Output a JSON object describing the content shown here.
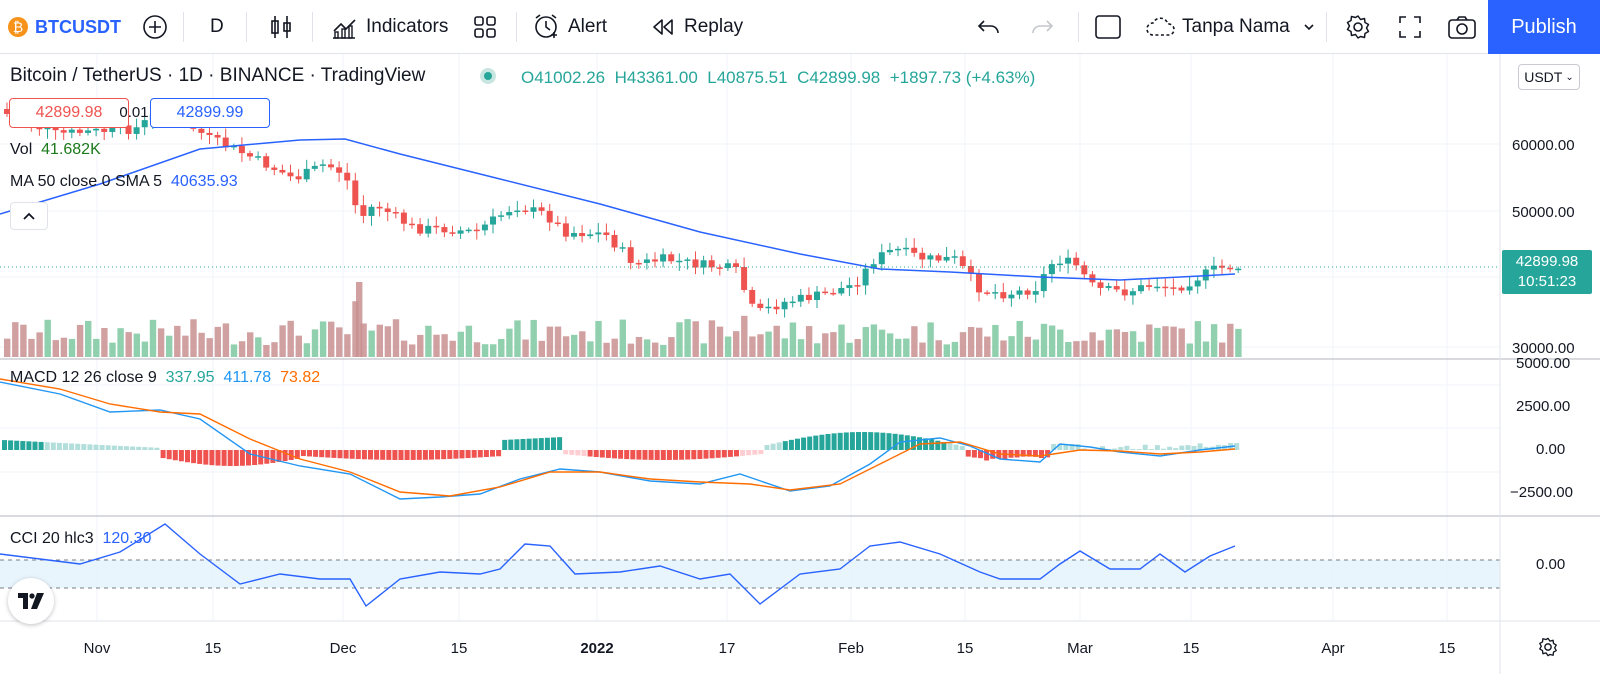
{
  "toolbar": {
    "symbol": "BTCUSDT",
    "interval": "D",
    "indicators_label": "Indicators",
    "alert_label": "Alert",
    "replay_label": "Replay",
    "layout_name": "Tanpa Nama",
    "publish_label": "Publish"
  },
  "header": {
    "title": "Bitcoin / TetherUS · 1D · BINANCE · TradingView",
    "open": "O41002.26",
    "high": "H43361.00",
    "low": "L40875.51",
    "close": "C42899.98",
    "change": "+1897.73 (+4.63%)"
  },
  "order": {
    "sell_price": "42899.98",
    "spread": "0.01",
    "buy_price": "42899.99"
  },
  "legends": {
    "vol_label": "Vol",
    "vol_value": "41.682K",
    "ma_label": "MA 50 close 0 SMA 5",
    "ma_value": "40635.93",
    "macd_label": "MACD 12 26 close 9",
    "macd_v1": "337.95",
    "macd_v2": "411.78",
    "macd_v3": "73.82",
    "cci_label": "CCI 20 hlc3",
    "cci_value": "120.30"
  },
  "price_axis": {
    "currency": "USDT",
    "ticks": [
      "60000.00",
      "50000.00",
      "30000.00"
    ],
    "last_price": "42899.98",
    "countdown": "10:51:23"
  },
  "macd_axis": {
    "ticks": [
      "5000.00",
      "2500.00",
      "0.00",
      "−2500.00"
    ]
  },
  "cci_axis": {
    "ticks": [
      "0.00"
    ]
  },
  "time_axis": {
    "labels": [
      "Nov",
      "15",
      "Dec",
      "15",
      "2022",
      "17",
      "Feb",
      "15",
      "Mar",
      "15",
      "Apr",
      "15"
    ]
  },
  "colors": {
    "up": "#26a69a",
    "down": "#ef5350",
    "ma": "#2962ff",
    "macd": "#2196f3",
    "signal": "#ff6d00",
    "accent": "#2962ff"
  },
  "icons": [
    "bitcoin-icon",
    "plus-circle-icon",
    "candles-icon",
    "indicators-icon",
    "templates-icon",
    "alert-icon",
    "replay-icon",
    "undo-icon",
    "redo-icon",
    "layout-icon",
    "cloud-icon",
    "chevron-down-icon",
    "gear-icon",
    "fullscreen-icon",
    "camera-icon",
    "tradingview-logo-icon",
    "collapse-icon"
  ]
}
